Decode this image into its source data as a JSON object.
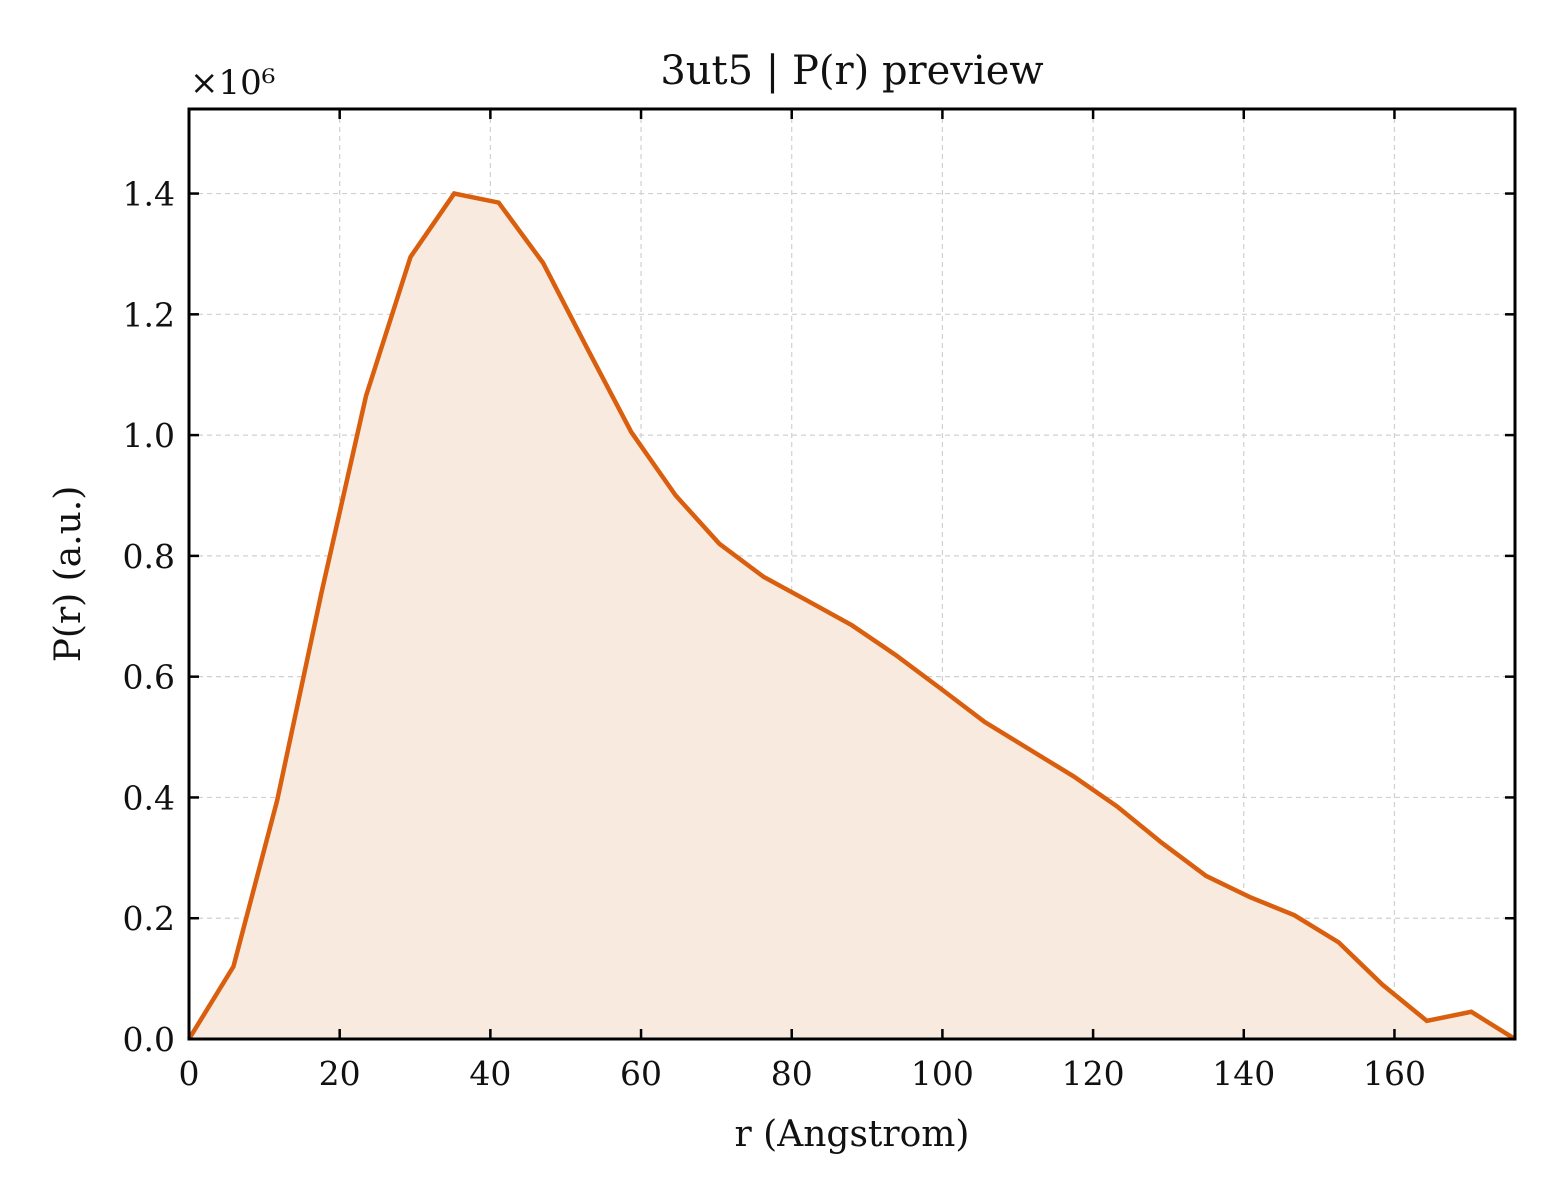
{
  "chart_data": {
    "type": "area",
    "title": "3ut5 | P(r) preview",
    "xlabel": "r (Angstrom)",
    "ylabel": "P(r) (a.u.)",
    "y_multiplier": "×10⁶",
    "xlim": [
      0,
      176
    ],
    "ylim": [
      0,
      1.54
    ],
    "x_ticks": [
      0,
      20,
      40,
      60,
      80,
      100,
      120,
      140,
      160
    ],
    "x_tick_labels": [
      "0",
      "20",
      "40",
      "60",
      "80",
      "100",
      "120",
      "140",
      "160"
    ],
    "y_ticks": [
      0.0,
      0.2,
      0.4,
      0.6,
      0.8,
      1.0,
      1.2,
      1.4
    ],
    "y_tick_labels": [
      "0.0",
      "0.2",
      "0.4",
      "0.6",
      "0.8",
      "1.0",
      "1.2",
      "1.4"
    ],
    "grid": true,
    "colors": {
      "line": "#d95f0e",
      "fill": "#f9eadf"
    },
    "series": [
      {
        "x": [
          0,
          5.9,
          11.7,
          17.6,
          23.5,
          29.4,
          35.2,
          41.1,
          47.0,
          52.8,
          58.7,
          64.6,
          70.4,
          76.3,
          82.2,
          88.0,
          93.9,
          99.8,
          105.6,
          111.5,
          117.4,
          123.2,
          129.1,
          135.0,
          140.8,
          146.7,
          152.6,
          158.4,
          164.3,
          170.2,
          176.0
        ],
        "y": [
          0.0,
          0.12,
          0.395,
          0.74,
          1.065,
          1.295,
          1.4,
          1.385,
          1.285,
          1.145,
          1.005,
          0.9,
          0.82,
          0.765,
          0.725,
          0.685,
          0.635,
          0.58,
          0.525,
          0.48,
          0.435,
          0.385,
          0.325,
          0.27,
          0.235,
          0.205,
          0.16,
          0.09,
          0.03,
          0.045,
          0.0
        ]
      }
    ]
  }
}
